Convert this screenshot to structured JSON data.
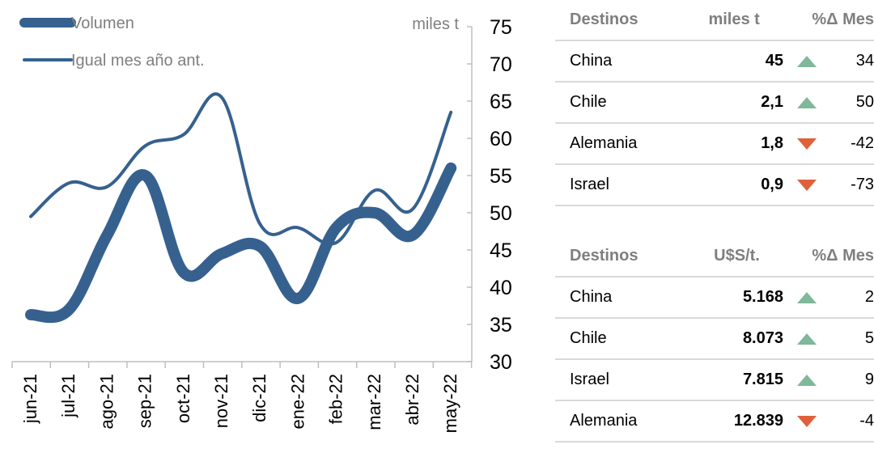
{
  "chart_data": {
    "type": "line",
    "categories": [
      "jun-21",
      "jul-21",
      "ago-21",
      "sep-21",
      "oct-21",
      "nov-21",
      "dic-21",
      "ene-22",
      "feb-22",
      "mar-22",
      "abr-22",
      "may-22"
    ],
    "series": [
      {
        "name": "Volumen",
        "values": [
          36.3,
          37,
          47,
          55,
          42,
          44.5,
          45.5,
          38.5,
          48,
          50,
          47,
          56
        ],
        "line_style": "thick"
      },
      {
        "name": "Igual mes año ant.",
        "values": [
          49.5,
          54,
          53.5,
          59,
          60.5,
          65.5,
          48.5,
          48,
          46,
          53,
          50.5,
          63.5
        ],
        "line_style": "thin"
      }
    ],
    "ylabel": "miles t",
    "ylim": [
      30,
      75
    ],
    "yticks": [
      30,
      35,
      40,
      45,
      50,
      55,
      60,
      65,
      70,
      75
    ],
    "grid": false,
    "legend_position": "top-left",
    "color": "#36618f"
  },
  "tables": [
    {
      "headers": [
        "Destinos",
        "miles t",
        "%Δ Mes"
      ],
      "rows": [
        {
          "dest": "China",
          "val": "45",
          "dir": "up",
          "pct": "34"
        },
        {
          "dest": "Chile",
          "val": "2,1",
          "dir": "up",
          "pct": "50"
        },
        {
          "dest": "Alemania",
          "val": "1,8",
          "dir": "down",
          "pct": "-42"
        },
        {
          "dest": "Israel",
          "val": "0,9",
          "dir": "down",
          "pct": "-73"
        }
      ]
    },
    {
      "headers": [
        "Destinos",
        "U$S/t.",
        "%Δ Mes"
      ],
      "rows": [
        {
          "dest": "China",
          "val": "5.168",
          "dir": "up",
          "pct": "2"
        },
        {
          "dest": "Chile",
          "val": "8.073",
          "dir": "up",
          "pct": "5"
        },
        {
          "dest": "Israel",
          "val": "7.815",
          "dir": "up",
          "pct": "9"
        },
        {
          "dest": "Alemania",
          "val": "12.839",
          "dir": "down",
          "pct": "-4"
        }
      ]
    }
  ]
}
